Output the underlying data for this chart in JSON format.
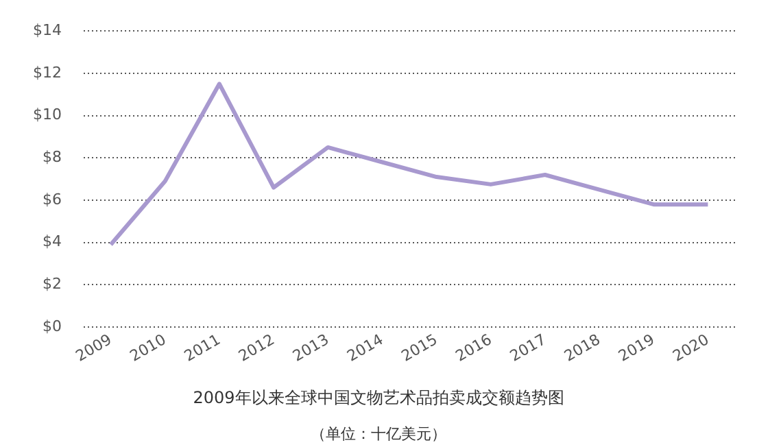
{
  "chart_data": {
    "type": "line",
    "title": "2009年以来全球中国文物艺术品拍卖成交额趋势图",
    "subtitle": "（单位：十亿美元）",
    "categories": [
      "2009",
      "2010",
      "2011",
      "2012",
      "2013",
      "2014",
      "2015",
      "2016",
      "2017",
      "2018",
      "2019",
      "2020"
    ],
    "series": [
      {
        "color": "#a899cf",
        "values": [
          3.9,
          6.9,
          11.5,
          6.6,
          8.5,
          7.8,
          7.1,
          6.75,
          7.2,
          6.5,
          5.8,
          5.8
        ]
      }
    ],
    "ylim": [
      0,
      14
    ],
    "yticks": [
      {
        "value": 0,
        "label": "$0"
      },
      {
        "value": 2,
        "label": "$2"
      },
      {
        "value": 4,
        "label": "$4"
      },
      {
        "value": 6,
        "label": "$6"
      },
      {
        "value": 8,
        "label": "$8"
      },
      {
        "value": 10,
        "label": "$10"
      },
      {
        "value": 12,
        "label": "$12"
      },
      {
        "value": 14,
        "label": "$14"
      }
    ],
    "grid": "y",
    "legend": false,
    "marker": "none",
    "line_style": "solid"
  }
}
